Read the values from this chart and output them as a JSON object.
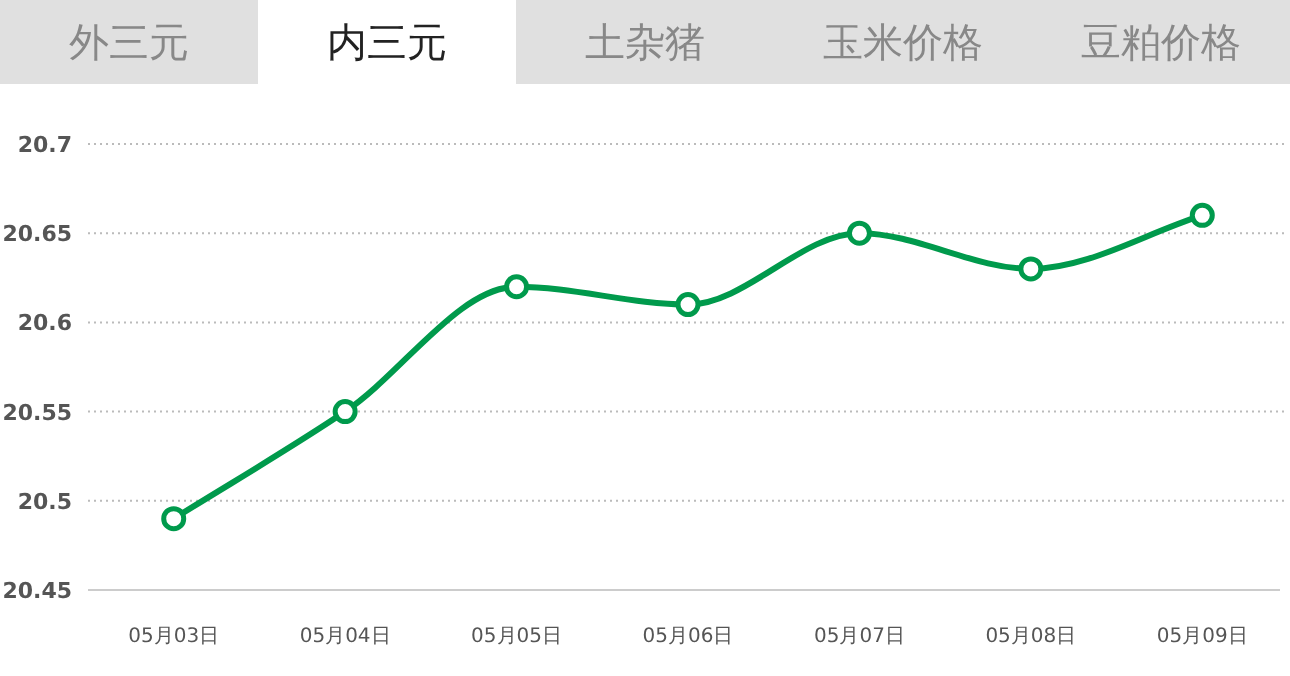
{
  "chart_data": {
    "type": "line",
    "annotations": [
      "外三元",
      "内三元",
      "土杂猪",
      "玉米价格",
      "豆粕价格"
    ],
    "categories": [
      "05月03日",
      "05月04日",
      "05月05日",
      "05月06日",
      "05月07日",
      "05月08日",
      "05月09日"
    ],
    "values": [
      20.49,
      20.55,
      20.62,
      20.61,
      20.65,
      20.63,
      20.66
    ],
    "color": "#009a4c",
    "ylim": [
      20.45,
      20.7
    ],
    "yticks": [
      20.45,
      20.5,
      20.55,
      20.6,
      20.65,
      20.7
    ],
    "grid": "y",
    "marker": "circle",
    "line_style": "solid"
  }
}
